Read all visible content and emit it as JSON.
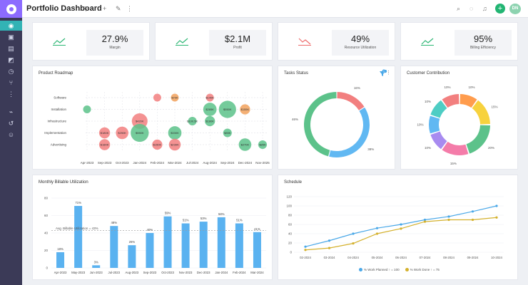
{
  "app": {
    "title": "Portfolio Dashboard",
    "user_initials": "DN"
  },
  "kpis": [
    {
      "value": "27.9%",
      "label": "Margin",
      "color": "#2bb673"
    },
    {
      "value": "$2.1M",
      "label": "Profit",
      "color": "#2bb673"
    },
    {
      "value": "49%",
      "label": "Resource Utilization",
      "color": "#ee6b6b"
    },
    {
      "value": "95%",
      "label": "Billing Efficiency",
      "color": "#2bb673"
    }
  ],
  "roadmap": {
    "title": "Product Roadmap",
    "chart_data": {
      "type": "scatter",
      "categories_y": [
        "Software",
        "Installation",
        "Infrastructure",
        "Implementation",
        "Advertising"
      ],
      "categories_x": [
        "Apr-2023",
        "Sep-2023",
        "Oct-2023",
        "Jan-2024",
        "Feb-2024",
        "Mar-2024",
        "Jul-2024",
        "Aug-2024",
        "Sep-2024",
        "Dec-2024",
        "Nov-2025"
      ],
      "bubbles": [
        {
          "x": 4,
          "y": 0,
          "label": "",
          "color": "#f27f7f",
          "size": 1
        },
        {
          "x": 5,
          "y": 0,
          "label": "$70K",
          "color": "#f2a25d",
          "size": 1
        },
        {
          "x": 7,
          "y": 0,
          "label": "$140K",
          "color": "#f27f7f",
          "size": 1
        },
        {
          "x": 0,
          "y": 1,
          "label": "",
          "color": "#5cc28a",
          "size": 1
        },
        {
          "x": 7,
          "y": 1,
          "label": "$285K",
          "color": "#5cc28a",
          "size": 1.7
        },
        {
          "x": 8,
          "y": 1,
          "label": "$550K",
          "color": "#5cc28a",
          "size": 2.2
        },
        {
          "x": 9,
          "y": 1,
          "label": "$155K",
          "color": "#f2a25d",
          "size": 1.3
        },
        {
          "x": 3,
          "y": 2,
          "label": "$420K",
          "color": "#f27f7f",
          "size": 2
        },
        {
          "x": 6,
          "y": 2,
          "label": "$100.5K",
          "color": "#5cc28a",
          "size": 1.1
        },
        {
          "x": 7,
          "y": 2,
          "label": "$180K",
          "color": "#5cc28a",
          "size": 1.3
        },
        {
          "x": 1,
          "y": 3,
          "label": "$180K",
          "color": "#f27f7f",
          "size": 1.4
        },
        {
          "x": 2,
          "y": 3,
          "label": "$250K",
          "color": "#f27f7f",
          "size": 1.6
        },
        {
          "x": 3,
          "y": 3,
          "label": "$550K",
          "color": "#5cc28a",
          "size": 2.3
        },
        {
          "x": 5,
          "y": 3,
          "label": "$330K",
          "color": "#5cc28a",
          "size": 1.7
        },
        {
          "x": 8,
          "y": 3,
          "label": "$85K",
          "color": "#5cc28a",
          "size": 1.1
        },
        {
          "x": 1,
          "y": 4,
          "label": "$180K",
          "color": "#f27f7f",
          "size": 1.4
        },
        {
          "x": 4,
          "y": 4,
          "label": "$150K",
          "color": "#f27f7f",
          "size": 1.3
        },
        {
          "x": 5,
          "y": 4,
          "label": "$230K",
          "color": "#f27f7f",
          "size": 1.5
        },
        {
          "x": 9,
          "y": 4,
          "label": "$270K",
          "color": "#5cc28a",
          "size": 1.6
        },
        {
          "x": 10,
          "y": 4,
          "label": "$85K",
          "color": "#5cc28a",
          "size": 1.1
        }
      ]
    }
  },
  "tasks": {
    "title": "Tasks Status",
    "badge": "1",
    "chart_data": {
      "type": "pie",
      "slices": [
        {
          "value": 16,
          "label": "16%",
          "color": "#f27f7f"
        },
        {
          "value": 38,
          "label": "38%",
          "color": "#61b8f2"
        },
        {
          "value": 46,
          "label": "46%",
          "color": "#5cc28a"
        }
      ],
      "label_order": [
        "16%",
        "46%",
        "38%"
      ]
    }
  },
  "customer": {
    "title": "Customer Contribution",
    "chart_data": {
      "type": "pie",
      "slices": [
        {
          "value": 10,
          "label": "10%",
          "color": "#ff9c4d"
        },
        {
          "value": 15,
          "label": "15%",
          "color": "#f7d23e"
        },
        {
          "value": 20,
          "label": "20%",
          "color": "#5cc28a"
        },
        {
          "value": 15,
          "label": "15%",
          "color": "#f47ca9"
        },
        {
          "value": 10,
          "label": "10%",
          "color": "#a88bf0"
        },
        {
          "value": 10,
          "label": "10%",
          "color": "#61b8f2"
        },
        {
          "value": 10,
          "label": "10%",
          "color": "#4ecdc4"
        },
        {
          "value": 10,
          "label": "10%",
          "color": "#f27f7f"
        }
      ]
    }
  },
  "billable": {
    "title": "Monthly Billable Utilization",
    "chart_data": {
      "type": "bar",
      "categories": [
        "Apr-2023",
        "May-2023",
        "Jun-2023",
        "Jul-2023",
        "Aug-2023",
        "Sep-2023",
        "Oct-2023",
        "Nov-2023",
        "Dec-2023",
        "Jan-2024",
        "Feb-2024",
        "Mar-2024"
      ],
      "tick_categories": [
        "Apr-2023",
        "May-2023",
        "Jun-2023",
        "Jul-2023",
        "Aug-2023",
        "Sep-2023",
        "Oct-2023",
        "Nov-2023",
        "Dec-2023",
        "Jan-2024",
        "Feb-2024",
        "Mar-2024"
      ],
      "values": [
        18,
        71,
        3,
        48,
        26,
        40,
        59,
        51,
        53,
        58,
        51,
        41
      ],
      "labels": [
        "18%",
        "71%",
        "3%",
        "48%",
        "26%",
        "40%",
        "59%",
        "51%",
        "53%",
        "58%",
        "51%",
        "41%"
      ],
      "ylim": [
        0,
        80
      ],
      "yticks": [
        "0",
        "20",
        "40",
        "60",
        "80"
      ],
      "avg": 43,
      "avg_label": "Avg. Billable Utilization = 43%",
      "color": "#5ab2f0"
    }
  },
  "schedule": {
    "title": "Schedule",
    "chart_data": {
      "type": "line",
      "x": [
        "02-2024",
        "03-2024",
        "04-2024",
        "05-2024",
        "06-2024",
        "07-2024",
        "08-2024",
        "09-2024",
        "10-2024"
      ],
      "ylim": [
        0,
        120
      ],
      "yticks": [
        "0",
        "20",
        "40",
        "60",
        "80",
        "100",
        "120"
      ],
      "series": [
        {
          "name": "% Work Planned ↑ = 100",
          "color": "#4aa8e8",
          "values": [
            12,
            25,
            40,
            52,
            60,
            70,
            77,
            88,
            100
          ]
        },
        {
          "name": "% Work Done ↑ = 75",
          "color": "#d4b12d",
          "values": [
            5,
            9,
            19,
            40,
            51,
            66,
            70,
            70,
            75
          ]
        }
      ]
    }
  }
}
